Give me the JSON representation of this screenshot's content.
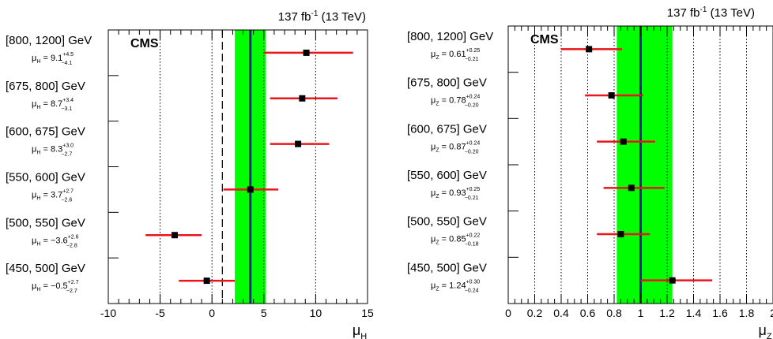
{
  "chart_data": [
    {
      "type": "scatter",
      "panel": "left",
      "orientation": "horizontal",
      "lumi_label": "137 fb",
      "lumi_sup": "-1",
      "lumi_energy": "(13 TeV)",
      "experiment": "CMS",
      "xlabel": "μ",
      "xlabel_sub": "H",
      "xlim": [
        -10,
        15
      ],
      "xticks": [
        -10,
        -5,
        0,
        5,
        10,
        15
      ],
      "grid_x": [
        -5,
        0,
        5,
        10
      ],
      "param": "μ",
      "param_sub": "H",
      "combined": {
        "value": 3.7,
        "band": [
          2.2,
          5.2
        ]
      },
      "sm_line": 1,
      "categories": [
        {
          "label": "[800, 1200] GeV",
          "value": "9.1",
          "up": "+4.5",
          "down": "−4.1",
          "v": 9.1,
          "lo": 5.0,
          "hi": 13.6
        },
        {
          "label": "[675, 800] GeV",
          "value": "8.7",
          "up": "+3.4",
          "down": "−3.1",
          "v": 8.7,
          "lo": 5.6,
          "hi": 12.1
        },
        {
          "label": "[600, 675] GeV",
          "value": "8.3",
          "up": "+3.0",
          "down": "−2.7",
          "v": 8.3,
          "lo": 5.6,
          "hi": 11.3
        },
        {
          "label": "[550, 600] GeV",
          "value": "3.7",
          "up": "+2.7",
          "down": "−2.6",
          "v": 3.7,
          "lo": 1.1,
          "hi": 6.4
        },
        {
          "label": "[500, 550] GeV",
          "value": "−3.6",
          "up": "+2.6",
          "down": "−2.8",
          "v": -3.6,
          "lo": -6.4,
          "hi": -1.0
        },
        {
          "label": "[450, 500] GeV",
          "value": "−0.5",
          "up": "+2.7",
          "down": "−2.7",
          "v": -0.5,
          "lo": -3.2,
          "hi": 2.2
        }
      ]
    },
    {
      "type": "scatter",
      "panel": "right",
      "orientation": "horizontal",
      "lumi_label": "137 fb",
      "lumi_sup": "-1",
      "lumi_energy": "(13 TeV)",
      "experiment": "CMS",
      "xlabel": "μ",
      "xlabel_sub": "Z",
      "xlim": [
        0,
        2
      ],
      "xticks": [
        "0",
        "0.2",
        "0.4",
        "0.6",
        "0.8",
        "1",
        "1.2",
        "1.4",
        "1.6",
        "1.8",
        "2"
      ],
      "grid_x": [
        0.2,
        0.4,
        0.6,
        0.8,
        1.0,
        1.2,
        1.4,
        1.6,
        1.8
      ],
      "param": "μ",
      "param_sub": "Z",
      "combined": {
        "value": 1.0,
        "band": [
          0.82,
          1.24
        ]
      },
      "categories": [
        {
          "label": "[800, 1200] GeV",
          "value": "0.61",
          "up": "+0.25",
          "down": "−0.21",
          "v": 0.61,
          "lo": 0.4,
          "hi": 0.86
        },
        {
          "label": "[675, 800] GeV",
          "value": "0.78",
          "up": "+0.24",
          "down": "−0.20",
          "v": 0.78,
          "lo": 0.58,
          "hi": 1.02
        },
        {
          "label": "[600, 675] GeV",
          "value": "0.87",
          "up": "+0.24",
          "down": "−0.20",
          "v": 0.87,
          "lo": 0.67,
          "hi": 1.11
        },
        {
          "label": "[550, 600] GeV",
          "value": "0.93",
          "up": "+0.25",
          "down": "−0.21",
          "v": 0.93,
          "lo": 0.72,
          "hi": 1.18
        },
        {
          "label": "[500, 550] GeV",
          "value": "0.85",
          "up": "+0.22",
          "down": "−0.18",
          "v": 0.85,
          "lo": 0.67,
          "hi": 1.07
        },
        {
          "label": "[450, 500] GeV",
          "value": "1.24",
          "up": "+0.30",
          "down": "−0.24",
          "v": 1.24,
          "lo": 1.0,
          "hi": 1.54
        }
      ]
    }
  ]
}
